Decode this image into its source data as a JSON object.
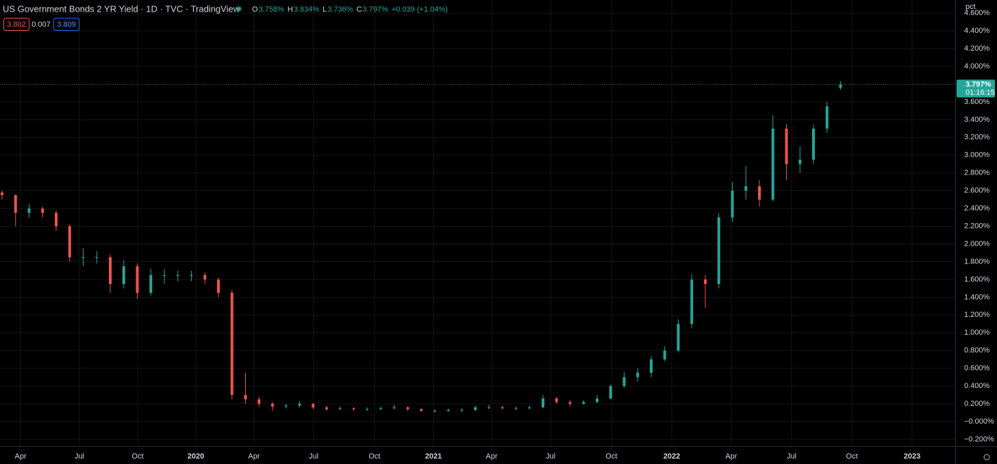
{
  "header": {
    "title": "US Government Bonds 2 YR Yield · 1D · TVC · TradingView",
    "ohlc": [
      {
        "key": "O",
        "value": "3.758%"
      },
      {
        "key": "H",
        "value": "3.834%"
      },
      {
        "key": "L",
        "value": "3.736%"
      },
      {
        "key": "C",
        "value": "3.797%"
      }
    ],
    "change": "+0.039 (+1.04%)",
    "bid": "3.802",
    "spread": "0.007",
    "ask": "3.809",
    "unit": "pct",
    "price_label": "3.797%",
    "countdown": "01:16:15"
  },
  "chart_data": {
    "type": "candlestick",
    "up_color": "#26a69a",
    "down_color": "#ef5350",
    "grid": true,
    "xlim": [
      0,
      70
    ],
    "ylim": [
      -0.262,
      4.748
    ],
    "xticks": [
      {
        "value": 1.37,
        "label": "Apr"
      },
      {
        "value": 5.72,
        "label": "Jul"
      },
      {
        "value": 10.03,
        "label": "Oct"
      },
      {
        "value": 14.33,
        "label": "2020"
      },
      {
        "value": 18.63,
        "label": "Apr"
      },
      {
        "value": 23.04,
        "label": "Jul"
      },
      {
        "value": 27.54,
        "label": "Oct"
      },
      {
        "value": 31.9,
        "label": "2021"
      },
      {
        "value": 36.2,
        "label": "Apr"
      },
      {
        "value": 40.56,
        "label": "Jul"
      },
      {
        "value": 45.06,
        "label": "Oct"
      },
      {
        "value": 49.52,
        "label": "2022"
      },
      {
        "value": 53.92,
        "label": "Apr"
      },
      {
        "value": 58.38,
        "label": "Jul"
      },
      {
        "value": 62.84,
        "label": "Oct"
      },
      {
        "value": 67.29,
        "label": "2023"
      }
    ],
    "yticks": [
      {
        "value": -0.2,
        "label": "−0.200%"
      },
      {
        "value": 0,
        "label": "−0.000%"
      },
      {
        "value": 0.2,
        "label": "0.200%"
      },
      {
        "value": 0.4,
        "label": "0.400%"
      },
      {
        "value": 0.6,
        "label": "0.600%"
      },
      {
        "value": 0.8,
        "label": "0.800%"
      },
      {
        "value": 1,
        "label": "1.000%"
      },
      {
        "value": 1.2,
        "label": "1.200%"
      },
      {
        "value": 1.4,
        "label": "1.400%"
      },
      {
        "value": 1.6,
        "label": "1.600%"
      },
      {
        "value": 1.8,
        "label": "1.800%"
      },
      {
        "value": 2,
        "label": "2.000%"
      },
      {
        "value": 2.2,
        "label": "2.200%"
      },
      {
        "value": 2.4,
        "label": "2.400%"
      },
      {
        "value": 2.6,
        "label": "2.600%"
      },
      {
        "value": 2.8,
        "label": "2.800%"
      },
      {
        "value": 3,
        "label": "3.000%"
      },
      {
        "value": 3.2,
        "label": "3.200%"
      },
      {
        "value": 3.4,
        "label": "3.400%"
      },
      {
        "value": 3.6,
        "label": "3.600%"
      },
      {
        "value": 4,
        "label": "4.000%"
      },
      {
        "value": 4.2,
        "label": "4.200%"
      },
      {
        "value": 4.4,
        "label": "4.400%"
      },
      {
        "value": 4.6,
        "label": "4.600%"
      }
    ],
    "open": [
      2.58,
      2.55,
      2.35,
      2.4,
      2.35,
      2.2,
      1.85,
      1.85,
      1.85,
      1.55,
      1.75,
      1.45,
      1.65,
      1.65,
      1.65,
      1.65,
      1.6,
      1.45,
      0.3,
      0.25,
      0.2,
      0.17,
      0.18,
      0.2,
      0.16,
      0.14,
      0.15,
      0.14,
      0.14,
      0.15,
      0.16,
      0.14,
      0.12,
      0.12,
      0.13,
      0.13,
      0.16,
      0.16,
      0.15,
      0.15,
      0.16,
      0.26,
      0.22,
      0.2,
      0.22,
      0.26,
      0.4,
      0.5,
      0.55,
      0.7,
      0.8,
      1.1,
      1.6,
      1.55,
      2.3,
      2.6,
      2.65,
      2.5,
      3.3,
      2.9,
      2.95,
      3.3,
      3.758
    ],
    "high": [
      2.6,
      2.56,
      2.45,
      2.42,
      2.38,
      2.22,
      1.95,
      1.92,
      1.88,
      1.82,
      1.78,
      1.72,
      1.72,
      1.7,
      1.7,
      1.68,
      1.62,
      1.48,
      0.55,
      0.28,
      0.22,
      0.2,
      0.23,
      0.21,
      0.18,
      0.17,
      0.16,
      0.16,
      0.17,
      0.19,
      0.17,
      0.15,
      0.14,
      0.15,
      0.15,
      0.18,
      0.19,
      0.18,
      0.17,
      0.18,
      0.3,
      0.28,
      0.24,
      0.24,
      0.3,
      0.42,
      0.56,
      0.6,
      0.74,
      0.85,
      1.15,
      1.66,
      1.65,
      2.35,
      2.7,
      2.88,
      2.72,
      3.45,
      3.35,
      3.1,
      3.35,
      3.6,
      3.834
    ],
    "low": [
      2.5,
      2.2,
      2.3,
      2.3,
      2.15,
      1.8,
      1.75,
      1.78,
      1.45,
      1.5,
      1.38,
      1.42,
      1.55,
      1.58,
      1.58,
      1.55,
      1.4,
      0.25,
      0.2,
      0.17,
      0.12,
      0.15,
      0.16,
      0.14,
      0.12,
      0.13,
      0.12,
      0.12,
      0.13,
      0.14,
      0.12,
      0.11,
      0.1,
      0.11,
      0.11,
      0.12,
      0.14,
      0.14,
      0.13,
      0.14,
      0.15,
      0.2,
      0.17,
      0.19,
      0.21,
      0.25,
      0.38,
      0.45,
      0.5,
      0.68,
      0.78,
      1.05,
      1.28,
      1.5,
      2.25,
      2.5,
      2.42,
      2.48,
      2.72,
      2.8,
      2.9,
      3.25,
      3.736
    ],
    "close": [
      2.55,
      2.35,
      2.4,
      2.35,
      2.2,
      1.85,
      1.85,
      1.85,
      1.55,
      1.75,
      1.45,
      1.65,
      1.65,
      1.65,
      1.65,
      1.6,
      1.45,
      0.3,
      0.25,
      0.2,
      0.17,
      0.18,
      0.2,
      0.16,
      0.14,
      0.15,
      0.14,
      0.14,
      0.15,
      0.16,
      0.14,
      0.12,
      0.12,
      0.13,
      0.13,
      0.16,
      0.16,
      0.15,
      0.15,
      0.16,
      0.26,
      0.22,
      0.2,
      0.22,
      0.26,
      0.4,
      0.5,
      0.55,
      0.7,
      0.8,
      1.1,
      1.6,
      1.55,
      2.3,
      2.6,
      2.65,
      2.5,
      3.3,
      2.9,
      2.95,
      3.3,
      3.55,
      3.797
    ]
  }
}
